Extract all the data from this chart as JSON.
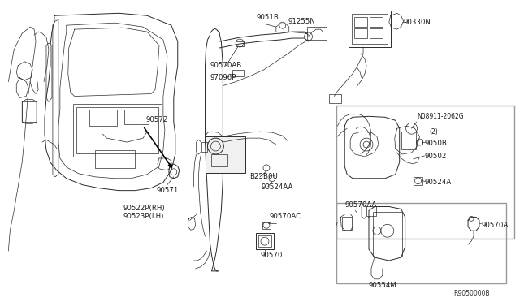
{
  "bg_color": "#f5f5f5",
  "line_color": "#2a2a2a",
  "label_color": "#1a1a1a",
  "fs": 6.2,
  "fs_small": 5.5,
  "diagram_ref": "R9050000B",
  "parts": [
    "90330N",
    "9051B",
    "90570AB",
    "97096P",
    "91255N",
    "90572",
    "90571",
    "90522P(RH)",
    "90523P(LH)",
    "B25B0U",
    "90524AA",
    "90570AC",
    "90570",
    "08911-2062G",
    "(2)",
    "9050B",
    "90502",
    "90524A",
    "90570AA",
    "90570A",
    "90554M"
  ]
}
